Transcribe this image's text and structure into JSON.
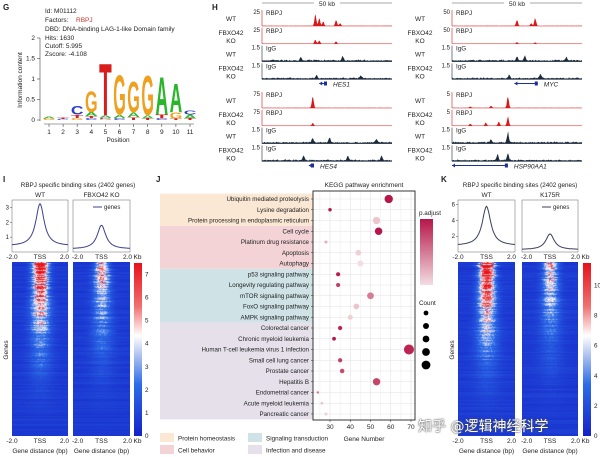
{
  "G": {
    "label": "G",
    "id": "Id: M01112",
    "factors_label": "Factors:",
    "factors_value": "RBPJ",
    "factors_color": "#c0392b",
    "dbd": "DBD: DNA-binding LAG-1-like Domain family",
    "hits": "Hits: 1630",
    "cutoff": "Cutoff: 5.995",
    "zscore": "Zscore: -4.108",
    "ylabel": "Information content",
    "xlabel": "Position",
    "yticks": [
      "0",
      "0.5",
      "1",
      "1.5",
      "2"
    ],
    "xticks": [
      "1",
      "2",
      "3",
      "4",
      "5",
      "6",
      "7",
      "8",
      "9",
      "10",
      "11"
    ],
    "letter_colors": {
      "A": "#2bb52b",
      "C": "#2d3fc4",
      "G": "#f0a020",
      "T": "#d91c1c"
    },
    "logo": [
      [
        [
          "G",
          0.04
        ],
        [
          "A",
          0.04
        ]
      ],
      [
        [
          "C",
          0.03
        ],
        [
          "T",
          0.03
        ]
      ],
      [
        [
          "G",
          0.05
        ],
        [
          "T",
          0.08
        ],
        [
          "C",
          0.22
        ]
      ],
      [
        [
          "C",
          0.05
        ],
        [
          "T",
          0.05
        ],
        [
          "A",
          0.1
        ],
        [
          "G",
          0.52
        ]
      ],
      [
        [
          "G",
          0.03
        ],
        [
          "C",
          0.03
        ],
        [
          "A",
          0.05
        ],
        [
          "T",
          1.32
        ]
      ],
      [
        [
          "C",
          0.05
        ],
        [
          "A",
          0.08
        ],
        [
          "G",
          1.0
        ]
      ],
      [
        [
          "T",
          0.07
        ],
        [
          "A",
          0.12
        ],
        [
          "G",
          0.78
        ]
      ],
      [
        [
          "T",
          0.04
        ],
        [
          "A",
          0.08
        ],
        [
          "G",
          1.0
        ]
      ],
      [
        [
          "C",
          0.04
        ],
        [
          "T",
          0.1
        ],
        [
          "A",
          0.96
        ]
      ],
      [
        [
          "T",
          0.04
        ],
        [
          "G",
          0.15
        ],
        [
          "A",
          0.72
        ]
      ],
      [
        [
          "T",
          0.04
        ],
        [
          "A",
          0.1
        ],
        [
          "C",
          0.1
        ]
      ]
    ]
  },
  "H": {
    "label": "H",
    "scale_bar": "50 kb",
    "window_kb": 50,
    "colors": {
      "RBPJ": "#d7191c",
      "IgG": "#1b2a3c",
      "gene": "#1f2f9a"
    },
    "columns": [
      {
        "blocks": [
          {
            "gene": "HES1",
            "gene_kb": [
              22,
              25
            ],
            "tracks": [
              {
                "cond1": "WT",
                "cond2": "",
                "scale": "25",
                "max": 25,
                "ab": "RBPJ",
                "peaks": [
                  [
                    20.5,
                    22
                  ],
                  [
                    22,
                    15
                  ],
                  [
                    23.5,
                    8
                  ],
                  [
                    28.5,
                    10
                  ],
                  [
                    30,
                    5
                  ]
                ]
              },
              {
                "cond1": "FBXO42",
                "cond2": "KO",
                "scale": "25",
                "max": 25,
                "ab": "RBPJ",
                "peaks": [
                  [
                    20.5,
                    8
                  ],
                  [
                    22,
                    6
                  ],
                  [
                    28.5,
                    4
                  ]
                ]
              },
              {
                "cond1": "WT",
                "cond2": "",
                "scale": "1.5",
                "max": 1.5,
                "ab": "IgG",
                "peaks": [
                  [
                    15,
                    0.35
                  ],
                  [
                    31,
                    0.45
                  ]
                ]
              },
              {
                "cond1": "FBXO42",
                "cond2": "KO",
                "scale": "1.5",
                "max": 1.5,
                "ab": "IgG",
                "peaks": [
                  [
                    21,
                    0.4
                  ],
                  [
                    38,
                    0.35
                  ]
                ]
              }
            ]
          },
          {
            "gene": "HES4",
            "gene_kb": [
              18,
              20
            ],
            "tracks": [
              {
                "cond1": "WT",
                "cond2": "",
                "scale": "75",
                "max": 75,
                "ab": "RBPJ",
                "peaks": [
                  [
                    19.5,
                    70
                  ]
                ]
              },
              {
                "cond1": "FBXO42",
                "cond2": "KO",
                "scale": "75",
                "max": 75,
                "ab": "RBPJ",
                "peaks": [
                  [
                    19.5,
                    16
                  ]
                ]
              },
              {
                "cond1": "WT",
                "cond2": "",
                "scale": "1.5",
                "max": 1.5,
                "ab": "IgG",
                "peaks": [
                  [
                    19.5,
                    0.6
                  ],
                  [
                    26,
                    0.5
                  ],
                  [
                    44,
                    0.45
                  ]
                ]
              },
              {
                "cond1": "FBXO42",
                "cond2": "KO",
                "scale": "1.5",
                "max": 1.5,
                "ab": "IgG",
                "peaks": [
                  [
                    16,
                    0.5
                  ],
                  [
                    33,
                    0.55
                  ],
                  [
                    46,
                    0.5
                  ]
                ]
              }
            ]
          }
        ]
      },
      {
        "blocks": [
          {
            "gene": "MYC",
            "gene_kb": [
              24,
              33
            ],
            "tracks": [
              {
                "cond1": "WT",
                "cond2": "",
                "scale": "50",
                "max": 50,
                "ab": "RBPJ",
                "peaks": [
                  [
                    25,
                    25
                  ],
                  [
                    32,
                    30
                  ],
                  [
                    30.5,
                    10
                  ]
                ]
              },
              {
                "cond1": "FBXO42",
                "cond2": "KO",
                "scale": "50",
                "max": 50,
                "ab": "RBPJ",
                "peaks": [
                  [
                    25,
                    6
                  ],
                  [
                    32,
                    5
                  ]
                ]
              },
              {
                "cond1": "WT",
                "cond2": "",
                "scale": "1.5",
                "max": 1.5,
                "ab": "IgG",
                "peaks": [
                  [
                    25,
                    0.5
                  ],
                  [
                    28,
                    0.6
                  ],
                  [
                    44,
                    0.4
                  ]
                ]
              },
              {
                "cond1": "FBXO42",
                "cond2": "KO",
                "scale": "1.5",
                "max": 1.5,
                "ab": "IgG",
                "peaks": [
                  [
                    22,
                    0.4
                  ],
                  [
                    34,
                    0.45
                  ]
                ]
              }
            ]
          },
          {
            "gene": "HSP90AA1",
            "gene_kb": [
              0,
              21.5
            ],
            "tracks": [
              {
                "cond1": "WT",
                "cond2": "",
                "scale": "5",
                "max": 5,
                "ab": "RBPJ",
                "peaks": [
                  [
                    21.5,
                    4.5
                  ],
                  [
                    15,
                    0.8
                  ],
                  [
                    7,
                    0.5
                  ]
                ]
              },
              {
                "cond1": "FBXO42",
                "cond2": "KO",
                "scale": "5",
                "max": 5,
                "ab": "RBPJ",
                "peaks": [
                  [
                    21.5,
                    3.6
                  ],
                  [
                    18,
                    1.6
                  ],
                  [
                    13,
                    1.2
                  ],
                  [
                    7,
                    0.8
                  ]
                ]
              },
              {
                "cond1": "WT",
                "cond2": "",
                "scale": "1.5",
                "max": 1.5,
                "ab": "IgG",
                "peaks": [
                  [
                    21.5,
                    1.2
                  ],
                  [
                    15,
                    0.4
                  ]
                ]
              },
              {
                "cond1": "FBXO42",
                "cond2": "KO",
                "scale": "1.5",
                "max": 1.5,
                "ab": "IgG",
                "peaks": [
                  [
                    21.5,
                    0.8
                  ],
                  [
                    17.5,
                    0.7
                  ]
                ]
              }
            ]
          }
        ]
      }
    ]
  },
  "I": {
    "label": "I",
    "title": "RBPJ specific binding sites (2402 genes)",
    "panels": [
      {
        "name": "WT",
        "peak": 3.25,
        "base": 0.4,
        "amp": 1.0
      },
      {
        "name": "FBXO42 KO",
        "peak": 1.8,
        "base": 0.2,
        "amp": 0.6
      }
    ],
    "legend": "genes",
    "yticks": [
      1,
      2,
      3
    ],
    "ymax": 3.5,
    "xticks": [
      "-2.0",
      "TSS",
      "2.0"
    ],
    "unit": "Kb",
    "ylabel": "Genes",
    "xlabel": "Gene distance (bp)",
    "colorbar_ticks": [
      "0",
      "1",
      "2",
      "3",
      "4",
      "5",
      "6",
      "7"
    ],
    "colorbar_max": 7.5,
    "line_color": "#3b3f8f"
  },
  "J": {
    "label": "J",
    "legend_padjust": "p.adjust",
    "legend_count": "Count",
    "category_legend": [
      {
        "name": "Protein homeostasis",
        "color": "#fbe8d4"
      },
      {
        "name": "Signaling transduction",
        "color": "#cfe3e6"
      },
      {
        "name": "Cell behavior",
        "color": "#f3d3d5"
      },
      {
        "name": "Infection and disease",
        "color": "#e5e0ea"
      }
    ]
  },
  "K": {
    "label": "K",
    "title": "RBPJ specific binding sites (2402 genes)",
    "panels": [
      {
        "name": "WT",
        "peak": 5.8,
        "base": 0.8,
        "amp": 1.0
      },
      {
        "name": "K175R",
        "peak": 2.3,
        "base": 0.3,
        "amp": 0.55
      }
    ],
    "legend": "genes",
    "yticks": [
      2,
      4,
      6
    ],
    "ymax": 6.6,
    "xticks": [
      "-2.0",
      "TSS",
      "2.0"
    ],
    "unit": "Kb",
    "ylabel": "Genes",
    "xlabel": "Gene distance (bp)",
    "colorbar_ticks": [
      "0",
      "2",
      "4",
      "6",
      "8",
      "10"
    ],
    "colorbar_max": 11.5,
    "line_color": "#3b3f5f"
  },
  "chart_data": {
    "type": "scatter",
    "title": "KEGG pathway enrichment",
    "xlabel": "Gene Number",
    "xlim": [
      23,
      72
    ],
    "xticks": [
      "30",
      "40",
      "50",
      "60",
      "70"
    ],
    "grid": true,
    "legend_placement": "right",
    "points": [
      {
        "pathway": "Ubiquitin mediated proteolysis",
        "gene_number": 59,
        "category": "Protein homeostasis",
        "color": "#b5174a"
      },
      {
        "pathway": "Lysine degradation",
        "gene_number": 30,
        "category": "Protein homeostasis",
        "color": "#b5174a"
      },
      {
        "pathway": "Protein processing in endoplasmic reticulum",
        "gene_number": 53,
        "category": "Protein homeostasis",
        "color": "#ecc6cf"
      },
      {
        "pathway": "Cell cycle",
        "gene_number": 54,
        "category": "Cell behavior",
        "color": "#b5174a"
      },
      {
        "pathway": "Platinum drug resistance",
        "gene_number": 28,
        "category": "Cell behavior",
        "color": "#e6b0be"
      },
      {
        "pathway": "Apoptosis",
        "gene_number": 44,
        "category": "Cell behavior",
        "color": "#efd0d7"
      },
      {
        "pathway": "Autophagy",
        "gene_number": 45,
        "category": "Cell behavior",
        "color": "#f3dde2"
      },
      {
        "pathway": "p53 signaling pathway",
        "gene_number": 34,
        "category": "Signaling transduction",
        "color": "#b81d4e"
      },
      {
        "pathway": "Longevity regulating pathway",
        "gene_number": 34,
        "category": "Signaling transduction",
        "color": "#c23e63"
      },
      {
        "pathway": "mTOR signaling pathway",
        "gene_number": 50,
        "category": "Signaling transduction",
        "color": "#d77c94"
      },
      {
        "pathway": "FoxO signaling pathway",
        "gene_number": 43,
        "category": "Signaling transduction",
        "color": "#ebc3cd"
      },
      {
        "pathway": "AMPK signaling pathway",
        "gene_number": 40,
        "category": "Signaling transduction",
        "color": "#efd0d7"
      },
      {
        "pathway": "Colorectal cancer",
        "gene_number": 35,
        "category": "Infection and disease",
        "color": "#bb2453"
      },
      {
        "pathway": "Chronic myeloid leukemia",
        "gene_number": 32,
        "category": "Infection and disease",
        "color": "#b5174a"
      },
      {
        "pathway": "Human T-cell leukemia virus 1 infection",
        "gene_number": 69,
        "category": "Infection and disease",
        "color": "#bb2453"
      },
      {
        "pathway": "Small cell lung cancer",
        "gene_number": 35,
        "category": "Infection and disease",
        "color": "#c23e63"
      },
      {
        "pathway": "Prostate cancer",
        "gene_number": 36,
        "category": "Infection and disease",
        "color": "#c7496c"
      },
      {
        "pathway": "Hepatitis B",
        "gene_number": 53,
        "category": "Infection and disease",
        "color": "#c44566"
      },
      {
        "pathway": "Endometrial cancer",
        "gene_number": 24,
        "category": "Infection and disease",
        "color": "#d57790"
      },
      {
        "pathway": "Acute myeloid leukemia",
        "gene_number": 26,
        "category": "Infection and disease",
        "color": "#ebc3cd"
      },
      {
        "pathway": "Pancreatic cancer",
        "gene_number": 28,
        "category": "Infection and disease",
        "color": "#efd0d7"
      }
    ],
    "padjust_colorbar": [
      "#b5174a",
      "#f3dde2"
    ]
  },
  "watermark": "知乎 @逻辑神经科学"
}
